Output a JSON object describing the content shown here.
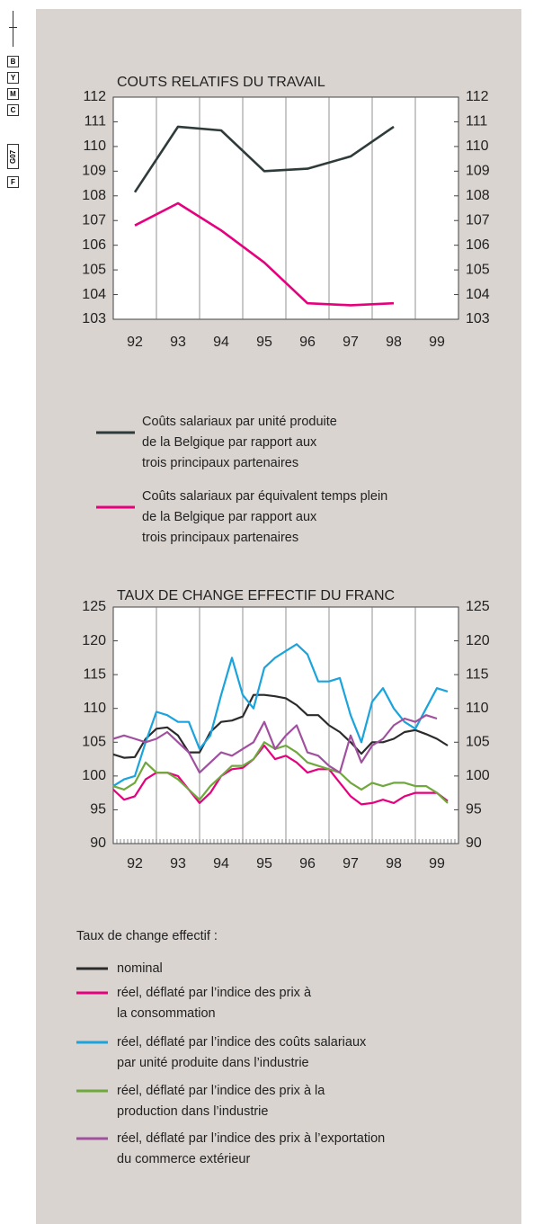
{
  "margin_marks": [
    "B",
    "Y",
    "M",
    "C",
    "G07",
    "F"
  ],
  "chart_data": [
    {
      "type": "line",
      "title": "COUTS RELATIFS DU TRAVAIL",
      "categories": [
        "92",
        "93",
        "94",
        "95",
        "96",
        "97",
        "98",
        "99"
      ],
      "ylim": [
        103,
        112
      ],
      "yticks": [
        103,
        104,
        105,
        106,
        107,
        108,
        109,
        110,
        111,
        112
      ],
      "series": [
        {
          "name": "Coûts salariaux par unité produite\nde la Belgique par rapport aux\ntrois principaux partenaires",
          "color": "#2f3b3a",
          "values": [
            108.15,
            110.8,
            110.65,
            109.0,
            109.1,
            109.6,
            110.8,
            null
          ]
        },
        {
          "name": "Coûts salariaux par équivalent temps plein\nde la Belgique par rapport aux\ntrois principaux partenaires",
          "color": "#e6007e",
          "values": [
            106.8,
            107.7,
            106.6,
            105.3,
            103.65,
            103.57,
            103.65,
            null
          ]
        }
      ]
    },
    {
      "type": "line",
      "title": "TAUX DE CHANGE EFFECTIF DU FRANC",
      "legend_title": "Taux de change effectif :",
      "x": [
        92,
        92.25,
        92.5,
        92.75,
        93,
        93.25,
        93.5,
        93.75,
        94,
        94.25,
        94.5,
        94.75,
        95,
        95.25,
        95.5,
        95.75,
        96,
        96.25,
        96.5,
        96.75,
        97,
        97.25,
        97.5,
        97.75,
        98,
        98.25,
        98.5,
        98.75,
        99,
        99.25,
        99.5,
        99.75
      ],
      "xlim": [
        92,
        100
      ],
      "xticks": [
        {
          "value": 92.5,
          "label": "92"
        },
        {
          "value": 93.5,
          "label": "93"
        },
        {
          "value": 94.5,
          "label": "94"
        },
        {
          "value": 95.5,
          "label": "95"
        },
        {
          "value": 96.5,
          "label": "96"
        },
        {
          "value": 97.5,
          "label": "97"
        },
        {
          "value": 98.5,
          "label": "98"
        },
        {
          "value": 99.5,
          "label": "99"
        }
      ],
      "ylim": [
        90,
        125
      ],
      "yticks": [
        90,
        95,
        100,
        105,
        110,
        115,
        120,
        125
      ],
      "series": [
        {
          "name": "nominal",
          "color": "#2b2b2b",
          "values": [
            103.2,
            102.7,
            102.8,
            105.5,
            107,
            107.2,
            106,
            103.5,
            103.5,
            106.5,
            108,
            108.2,
            108.8,
            112,
            112,
            111.8,
            111.5,
            110.5,
            109,
            109,
            107.5,
            106.5,
            105,
            103.3,
            105,
            105,
            105.5,
            106.5,
            106.8,
            106.2,
            105.5,
            104.5
          ]
        },
        {
          "name": "réel, déflaté par l’indice des prix à\nla consommation",
          "color": "#e6007e",
          "values": [
            98,
            96.5,
            97,
            99.5,
            100.5,
            100.5,
            100,
            98,
            96,
            97.5,
            100,
            101,
            101.2,
            102.5,
            104.5,
            102.5,
            103,
            102,
            100.5,
            101,
            101,
            99,
            97,
            95.8,
            96,
            96.5,
            96,
            97,
            97.5,
            97.5,
            97.5,
            96.3
          ]
        },
        {
          "name": "réel, déflaté par l’indice des coûts salariaux\npar unité produite dans l’industrie",
          "color": "#1aa3dc",
          "values": [
            98.5,
            99.5,
            100,
            105,
            109.5,
            109,
            108,
            108,
            104,
            106,
            112,
            117.5,
            112,
            110,
            116,
            117.5,
            118.5,
            119.5,
            118,
            114,
            114,
            114.5,
            109,
            105,
            111,
            113,
            110,
            108,
            107,
            110,
            113,
            112.5
          ]
        },
        {
          "name": "réel, déflaté par l’indice des prix à la\nproduction dans l’industrie",
          "color": "#6fa83c",
          "values": [
            98.5,
            98,
            99,
            102,
            100.5,
            100.5,
            99.5,
            98,
            96.5,
            98.5,
            100,
            101.5,
            101.5,
            102.5,
            105,
            104,
            104.5,
            103.5,
            102,
            101.5,
            101,
            100.5,
            99,
            98,
            99,
            98.5,
            99,
            99,
            98.5,
            98.5,
            97.5,
            96
          ]
        },
        {
          "name": "réel, déflaté par l’indice des prix à l’exportation\ndu commerce extérieur",
          "color": "#a0509f",
          "values": [
            105.5,
            106,
            105.5,
            105,
            105.5,
            106.5,
            105,
            103.5,
            100.5,
            102,
            103.5,
            103,
            104,
            105,
            108,
            104,
            106,
            107.5,
            103.5,
            103,
            101.5,
            100.5,
            106,
            102,
            104.5,
            105.5,
            107.5,
            108.5,
            108,
            109,
            108.5,
            null
          ]
        }
      ]
    }
  ]
}
